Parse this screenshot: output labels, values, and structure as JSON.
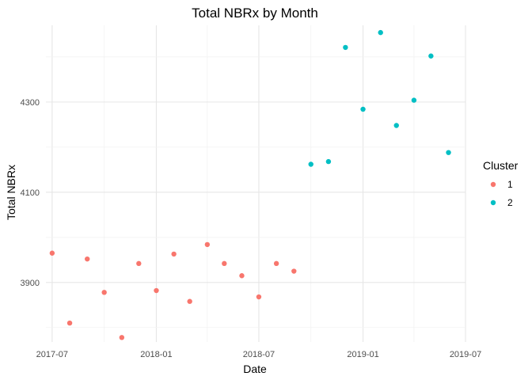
{
  "chart_data": {
    "type": "scatter",
    "title": "Total NBRx by Month",
    "xlabel": "Date",
    "ylabel": "Total NBRx",
    "xlim": [
      "2017-06-20",
      "2019-07-01"
    ],
    "ylim": [
      3768,
      4470
    ],
    "x_ticks": [
      "2017-07",
      "2018-01",
      "2018-07",
      "2019-01",
      "2019-07"
    ],
    "y_ticks": [
      3900,
      4100,
      4300
    ],
    "grid": true,
    "legend": {
      "title": "Cluster",
      "position": "right"
    },
    "colors": {
      "1": "#F8766D",
      "2": "#00BFC4"
    },
    "series": [
      {
        "name": "1",
        "x": [
          "2017-07-01",
          "2017-08-01",
          "2017-09-01",
          "2017-10-01",
          "2017-11-01",
          "2017-12-01",
          "2018-01-01",
          "2018-02-01",
          "2018-03-01",
          "2018-04-01",
          "2018-05-01",
          "2018-06-01",
          "2018-07-01",
          "2018-08-01",
          "2018-09-01"
        ],
        "y": [
          3965,
          3810,
          3952,
          3878,
          3778,
          3942,
          3882,
          3963,
          3858,
          3984,
          3942,
          3915,
          3868,
          3942,
          3925
        ]
      },
      {
        "name": "2",
        "x": [
          "2018-10-01",
          "2018-11-01",
          "2018-12-01",
          "2019-01-01",
          "2019-02-01",
          "2019-03-01",
          "2019-04-01",
          "2019-05-01",
          "2019-06-01"
        ],
        "y": [
          4162,
          4168,
          4421,
          4284,
          4454,
          4248,
          4304,
          4402,
          4188
        ]
      }
    ]
  }
}
